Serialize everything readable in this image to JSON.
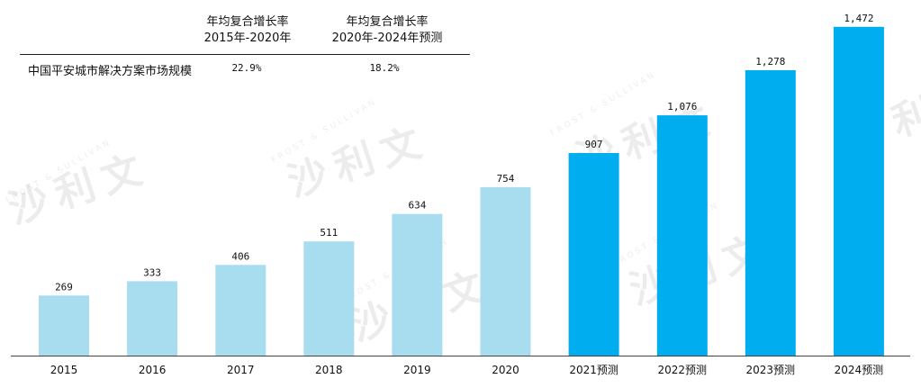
{
  "cagr_table": {
    "col1_line1": "年均复合增长率",
    "col1_line2": "2015年-2020年",
    "col2_line1": "年均复合增长率",
    "col2_line2": "2020年-2024年预测",
    "row_label": "中国平安城市解决方案市场规模",
    "col1_value": "22.9%",
    "col2_value": "18.2%"
  },
  "watermark": {
    "brand_cn": "沙利文",
    "brand_en": "FROST & SULLIVAN"
  },
  "chart_data": {
    "type": "bar",
    "title": "",
    "xlabel": "",
    "ylabel": "",
    "categories": [
      "2015",
      "2016",
      "2017",
      "2018",
      "2019",
      "2020",
      "2021预测",
      "2022预测",
      "2023预测",
      "2024预测"
    ],
    "values": [
      269,
      333,
      406,
      511,
      634,
      754,
      907,
      1076,
      1278,
      1472
    ],
    "value_labels": [
      "269",
      "333",
      "406",
      "511",
      "634",
      "754",
      "907",
      "1,076",
      "1,278",
      "1,472"
    ],
    "ylim": [
      0,
      1560
    ],
    "grid": false,
    "colors": {
      "historical": "#a8dcef",
      "forecast": "#00adef",
      "axis": "#444444",
      "text": "#111111"
    },
    "forecast_from_index": 6
  }
}
